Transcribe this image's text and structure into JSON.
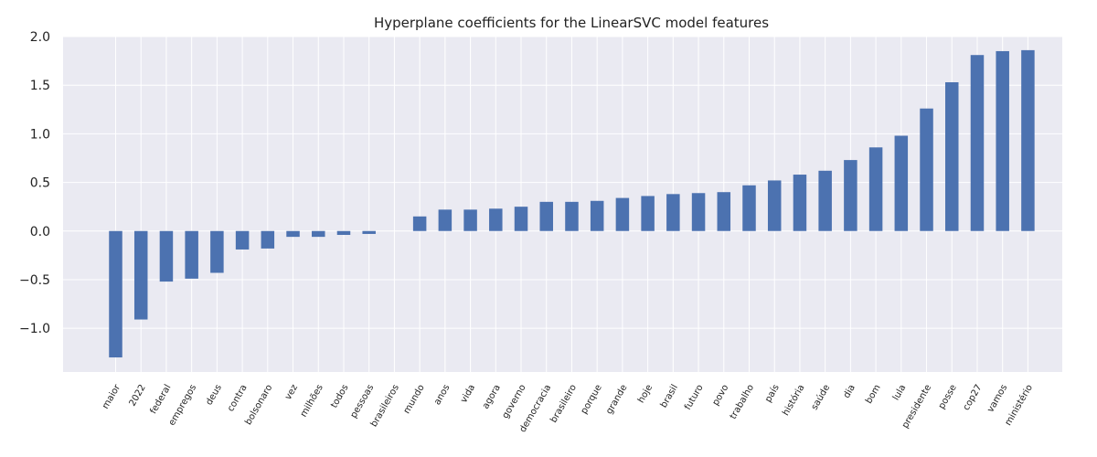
{
  "chart_data": {
    "type": "bar",
    "title": "Hyperplane coefficients for the LinearSVC model features",
    "xlabel": "",
    "ylabel": "",
    "categories": [
      "maior",
      "2022",
      "federal",
      "empregos",
      "deus",
      "contra",
      "bolsonaro",
      "vez",
      "milhões",
      "todos",
      "pessoas",
      "brasileiros",
      "mundo",
      "anos",
      "vida",
      "agora",
      "governo",
      "democracia",
      "brasileiro",
      "porque",
      "grande",
      "hoje",
      "brasil",
      "futuro",
      "povo",
      "trabalho",
      "país",
      "história",
      "saúde",
      "dia",
      "bom",
      "lula",
      "presidente",
      "posse",
      "cop27",
      "vamos",
      "ministério"
    ],
    "values": [
      -1.3,
      -0.91,
      -0.52,
      -0.49,
      -0.43,
      -0.19,
      -0.18,
      -0.06,
      -0.06,
      -0.04,
      -0.03,
      0.0,
      0.15,
      0.22,
      0.22,
      0.23,
      0.25,
      0.3,
      0.3,
      0.31,
      0.34,
      0.36,
      0.38,
      0.39,
      0.4,
      0.47,
      0.52,
      0.58,
      0.62,
      0.73,
      0.86,
      0.98,
      1.26,
      1.53,
      1.81,
      1.85,
      1.86
    ],
    "ylim": [
      -1.45,
      2.0
    ],
    "yticks": [
      "−1.0",
      "−0.5",
      "0.0",
      "0.5",
      "1.0",
      "1.5",
      "2.0"
    ],
    "ytick_values": [
      -1.0,
      -0.5,
      0.0,
      0.5,
      1.0,
      1.5,
      2.0
    ],
    "grid": true,
    "bar_color": "#4c72b0",
    "background_color": "#eaeaf2",
    "grid_color": "#ffffff"
  }
}
